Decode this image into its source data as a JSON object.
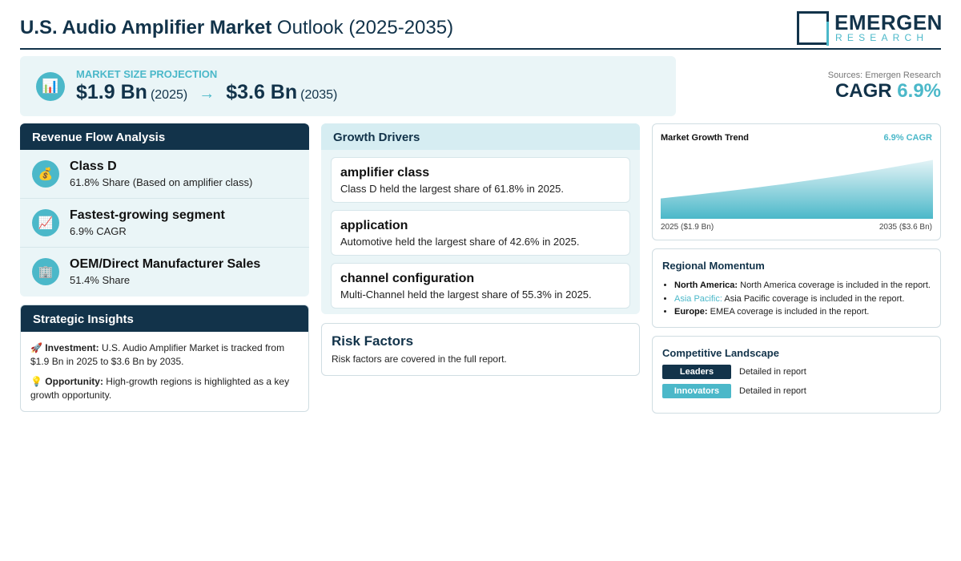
{
  "header": {
    "title_bold": "U.S. Audio Amplifier Market",
    "title_rest": " Outlook (2025-2035)",
    "logo_word": "EMERGEN",
    "logo_sub": "RESEARCH"
  },
  "projection": {
    "label": "MARKET SIZE PROJECTION",
    "start_value": "$1.9 Bn",
    "start_year": "(2025)",
    "arrow": "→",
    "end_value": "$3.6 Bn",
    "end_year": "(2035)",
    "icon": "bar-chart-icon"
  },
  "summary": {
    "sources": "Sources: Emergen Research",
    "cagr_label": "CAGR",
    "cagr_value": "6.9%"
  },
  "revenue_flow": {
    "title": "Revenue Flow Analysis",
    "items": [
      {
        "icon": "money-bag-icon",
        "glyph": "💰",
        "title": "Class D",
        "sub": "61.8% Share (Based on amplifier class)"
      },
      {
        "icon": "trend-up-icon",
        "glyph": "📈",
        "title": "Fastest-growing segment",
        "sub": "6.9% CAGR"
      },
      {
        "icon": "building-icon",
        "glyph": "🏢",
        "title": "OEM/Direct Manufacturer Sales",
        "sub": "51.4% Share"
      }
    ]
  },
  "strategic": {
    "title": "Strategic Insights",
    "investment_label": "Investment:",
    "investment_text": " U.S. Audio Amplifier Market is tracked from $1.9 Bn in 2025 to $3.6 Bn by 2035.",
    "opportunity_label": "Opportunity:",
    "opportunity_text": " High-growth regions is highlighted as a key growth opportunity."
  },
  "drivers": {
    "title": "Growth Drivers",
    "items": [
      {
        "title": "amplifier class",
        "desc": "Class D held the largest share of 61.8% in 2025."
      },
      {
        "title": "application",
        "desc": "Automotive held the largest share of 42.6% in 2025."
      },
      {
        "title": "channel configuration",
        "desc": "Multi-Channel held the largest share of 55.3% in 2025."
      }
    ]
  },
  "risk": {
    "title": "Risk Factors",
    "desc": "Risk factors are covered in the full report."
  },
  "trend": {
    "title": "Market Growth Trend",
    "cagr": "6.9% CAGR",
    "start_label": "2025 ($1.9 Bn)",
    "end_label": "2035 ($3.6 Bn)"
  },
  "chart_data": {
    "type": "area",
    "x": [
      2025,
      2035
    ],
    "values": [
      1.9,
      3.6
    ],
    "title": "Market Growth Trend"
  },
  "regional": {
    "title": "Regional Momentum",
    "items": [
      {
        "label": "North America:",
        "text": " North America coverage is included in the report."
      },
      {
        "label": "Asia Pacific:",
        "text": " Asia Pacific coverage is included in the report."
      },
      {
        "label": "Europe:",
        "text": " EMEA coverage is included in the report."
      }
    ]
  },
  "competitive": {
    "title": "Competitive Landscape",
    "rows": [
      {
        "badge": "Leaders",
        "note": "Detailed in report"
      },
      {
        "badge": "Innovators",
        "note": "Detailed in report"
      }
    ]
  },
  "colors": {
    "navy": "#12334a",
    "teal": "#4bb8c9",
    "panel_bg": "#eaf5f7"
  }
}
